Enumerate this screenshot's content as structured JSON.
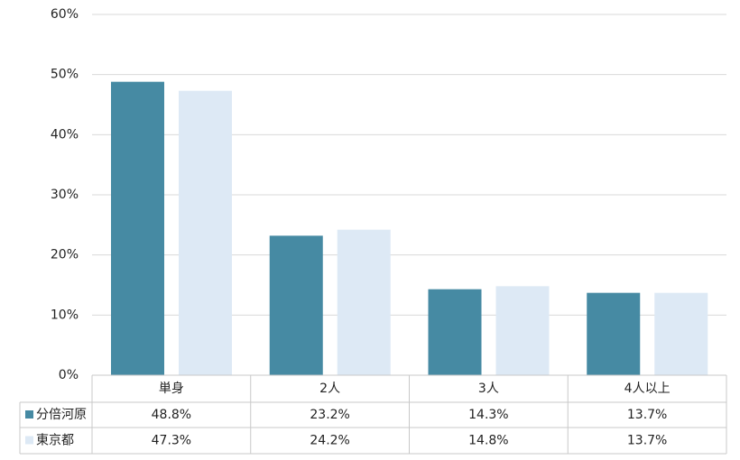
{
  "chart_data": {
    "type": "bar",
    "categories": [
      "単身",
      "2人",
      "3人",
      "4人以上"
    ],
    "series": [
      {
        "name": "分倍河原",
        "color": "#468aa3",
        "values": [
          48.8,
          23.2,
          14.3,
          13.7
        ],
        "value_labels": [
          "48.8%",
          "23.2%",
          "14.3%",
          "13.7%"
        ]
      },
      {
        "name": "東京都",
        "color": "#dde9f5",
        "values": [
          47.3,
          24.2,
          14.8,
          13.7
        ],
        "value_labels": [
          "47.3%",
          "24.2%",
          "14.8%",
          "13.7%"
        ]
      }
    ],
    "ylim": [
      0,
      60
    ],
    "yticks": [
      {
        "value": 0,
        "label": "0%"
      },
      {
        "value": 10,
        "label": "10%"
      },
      {
        "value": 20,
        "label": "20%"
      },
      {
        "value": 30,
        "label": "30%"
      },
      {
        "value": 40,
        "label": "40%"
      },
      {
        "value": 50,
        "label": "50%"
      },
      {
        "value": 60,
        "label": "60%"
      }
    ],
    "grid": true
  }
}
